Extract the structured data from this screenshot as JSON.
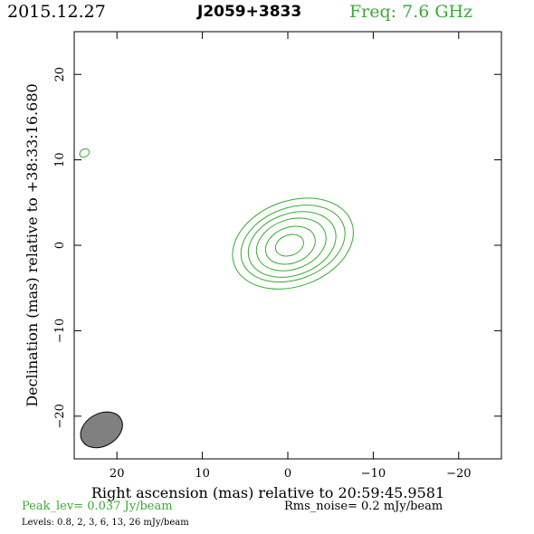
{
  "header": {
    "date": "2015.12.27",
    "source": "J2059+3833",
    "frequency": "Freq: 7.6 GHz"
  },
  "footer": {
    "peak": "Peak_lev=  0.037 Jy/beam",
    "rms": "Rms_noise=   0.2 mJy/beam",
    "levels": "Levels: 0.8,    2,    3,    6,   13,   26 mJy/beam"
  },
  "colors": {
    "contour": "#3aaa35",
    "beam_fill": "#808080",
    "frame": "#000000"
  },
  "chart_data": {
    "type": "contour",
    "xlabel": "Right ascension (mas) relative to 20:59:45.9581",
    "ylabel": "Declination (mas) relative to +38:33:16.680",
    "xlim": [
      25,
      -25
    ],
    "ylim": [
      -25,
      25
    ],
    "x_ticks": [
      20,
      10,
      0,
      -10,
      -20
    ],
    "x_tick_labels": [
      "20",
      "10",
      "0",
      "−10",
      "−20"
    ],
    "y_ticks": [
      -20,
      -10,
      0,
      10,
      20
    ],
    "y_tick_labels": [
      "−20",
      "−10",
      "0",
      "10",
      "20"
    ],
    "contour_levels_mJy": [
      0.8,
      2,
      3,
      6,
      13,
      26
    ],
    "contours": [
      {
        "level": 0.8,
        "cx": -0.6,
        "cy": 0.2,
        "a": 7.3,
        "b": 5.0,
        "angle_deg": 20
      },
      {
        "level": 2,
        "cx": -0.6,
        "cy": 0.2,
        "a": 6.3,
        "b": 4.2,
        "angle_deg": 20
      },
      {
        "level": 3,
        "cx": -0.5,
        "cy": 0.1,
        "a": 5.3,
        "b": 3.6,
        "angle_deg": 20
      },
      {
        "level": 6,
        "cx": -0.4,
        "cy": 0.1,
        "a": 4.2,
        "b": 2.9,
        "angle_deg": 20
      },
      {
        "level": 13,
        "cx": -0.3,
        "cy": 0.0,
        "a": 3.0,
        "b": 2.1,
        "angle_deg": 20
      },
      {
        "level": 26,
        "cx": -0.2,
        "cy": 0.0,
        "a": 1.7,
        "b": 1.2,
        "angle_deg": 20
      }
    ],
    "artifacts": [
      {
        "level": 0.8,
        "cx": 23.8,
        "cy": 10.8,
        "a": 0.6,
        "b": 0.45,
        "angle_deg": 30
      }
    ],
    "beam": {
      "cx": 21.8,
      "cy": -21.6,
      "a": 2.6,
      "b": 1.9,
      "angle_deg": 30
    }
  }
}
